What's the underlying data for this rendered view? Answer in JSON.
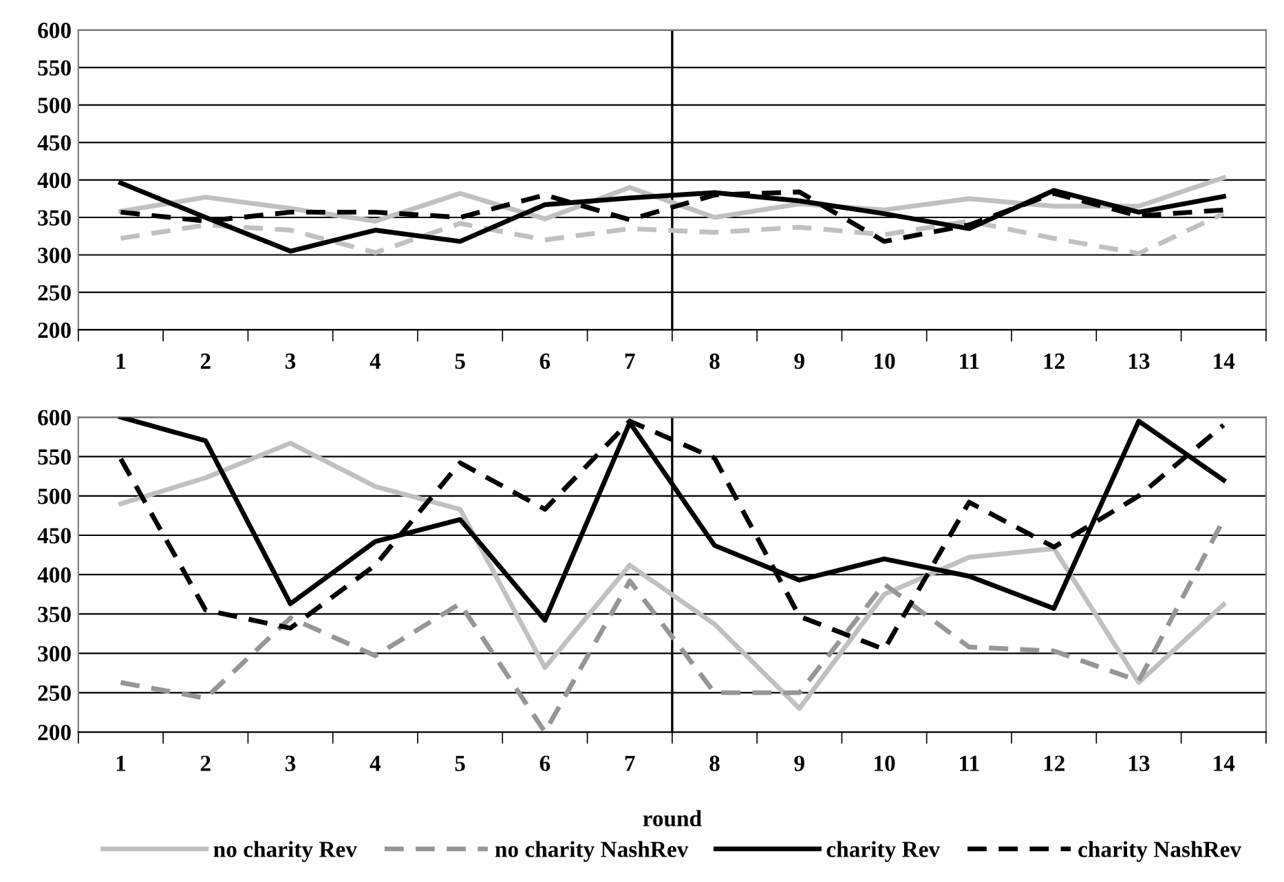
{
  "chart_data": [
    {
      "type": "line",
      "x": [
        1,
        2,
        3,
        4,
        5,
        6,
        7,
        8,
        9,
        10,
        11,
        12,
        13,
        14
      ],
      "xlim": [
        0.5,
        14.5
      ],
      "xticks": [
        1,
        2,
        3,
        4,
        5,
        6,
        7,
        8,
        9,
        10,
        11,
        12,
        13,
        14,
        {
          "value": 0.5,
          "label": null
        },
        {
          "value": 1.5,
          "label": null
        },
        {
          "value": 2.5,
          "label": null
        },
        {
          "value": 3.5,
          "label": null
        },
        {
          "value": 4.5,
          "label": null
        },
        {
          "value": 5.5,
          "label": null
        },
        {
          "value": 6.5,
          "label": null
        },
        {
          "value": 7.5,
          "label": null
        },
        {
          "value": 8.5,
          "label": null
        },
        {
          "value": 9.5,
          "label": null
        },
        {
          "value": 10.5,
          "label": null
        },
        {
          "value": 11.5,
          "label": null
        },
        {
          "value": 12.5,
          "label": null
        },
        {
          "value": 13.5,
          "label": null
        },
        {
          "value": 14.5,
          "label": null
        }
      ],
      "series": [
        {
          "color": "#c0c0c0",
          "line_style": "solid",
          "values": [
            358,
            377,
            362,
            345,
            382,
            348,
            390,
            350,
            368,
            360,
            375,
            365,
            365,
            403
          ]
        },
        {
          "color": "#c0c0c0",
          "line_style": "dashed",
          "values": [
            322,
            340,
            333,
            303,
            342,
            320,
            335,
            330,
            337,
            327,
            345,
            322,
            302,
            355
          ]
        },
        {
          "color": "#000000",
          "line_style": "solid",
          "values": [
            396,
            350,
            305,
            333,
            318,
            367,
            376,
            383,
            372,
            355,
            335,
            386,
            357,
            378
          ]
        },
        {
          "color": "#000000",
          "line_style": "dashed",
          "values": [
            357,
            345,
            357,
            357,
            350,
            380,
            347,
            380,
            384,
            318,
            340,
            382,
            352,
            360
          ]
        }
      ],
      "ylim": [
        200,
        600
      ],
      "yticks": [
        200,
        250,
        300,
        350,
        400,
        450,
        500,
        550,
        600
      ],
      "grid": "y",
      "marker": "none",
      "ref_lines": [
        {
          "axis": "x",
          "value": 7.5,
          "color": "#000000"
        }
      ]
    },
    {
      "type": "line",
      "x": [
        1,
        2,
        3,
        4,
        5,
        6,
        7,
        8,
        9,
        10,
        11,
        12,
        13,
        14
      ],
      "xlim": [
        0.5,
        14.5
      ],
      "xlabel": "round",
      "xticks": [
        1,
        2,
        3,
        4,
        5,
        6,
        7,
        8,
        9,
        10,
        11,
        12,
        13,
        14,
        {
          "value": 0.5,
          "label": null
        },
        {
          "value": 1.5,
          "label": null
        },
        {
          "value": 2.5,
          "label": null
        },
        {
          "value": 3.5,
          "label": null
        },
        {
          "value": 4.5,
          "label": null
        },
        {
          "value": 5.5,
          "label": null
        },
        {
          "value": 6.5,
          "label": null
        },
        {
          "value": 7.5,
          "label": null
        },
        {
          "value": 8.5,
          "label": null
        },
        {
          "value": 9.5,
          "label": null
        },
        {
          "value": 10.5,
          "label": null
        },
        {
          "value": 11.5,
          "label": null
        },
        {
          "value": 12.5,
          "label": null
        },
        {
          "value": 13.5,
          "label": null
        },
        {
          "value": 14.5,
          "label": null
        }
      ],
      "series": [
        {
          "name": "no charity Rev",
          "color": "#c0c0c0",
          "line_style": "solid",
          "values": [
            490,
            523,
            567,
            512,
            483,
            282,
            412,
            337,
            230,
            375,
            422,
            433,
            263,
            362
          ]
        },
        {
          "name": "no charity NashRev",
          "color": "#969696",
          "line_style": "dashed",
          "values": [
            263,
            243,
            345,
            297,
            363,
            200,
            392,
            250,
            250,
            388,
            308,
            303,
            265,
            470
          ]
        },
        {
          "name": "charity Rev",
          "color": "#000000",
          "line_style": "solid",
          "values": [
            600,
            570,
            363,
            442,
            470,
            342,
            593,
            437,
            393,
            420,
            398,
            357,
            595,
            520
          ]
        },
        {
          "name": "charity NashRev",
          "color": "#000000",
          "line_style": "dashed",
          "values": [
            547,
            355,
            332,
            412,
            542,
            483,
            595,
            548,
            347,
            305,
            492,
            435,
            500,
            590
          ]
        }
      ],
      "ylim": [
        200,
        600
      ],
      "yticks": [
        200,
        250,
        300,
        350,
        400,
        450,
        500,
        550,
        600
      ],
      "grid": "y",
      "legend": "bottom",
      "marker": "none",
      "ref_lines": [
        {
          "axis": "x",
          "value": 7.5,
          "color": "#000000"
        }
      ]
    }
  ]
}
